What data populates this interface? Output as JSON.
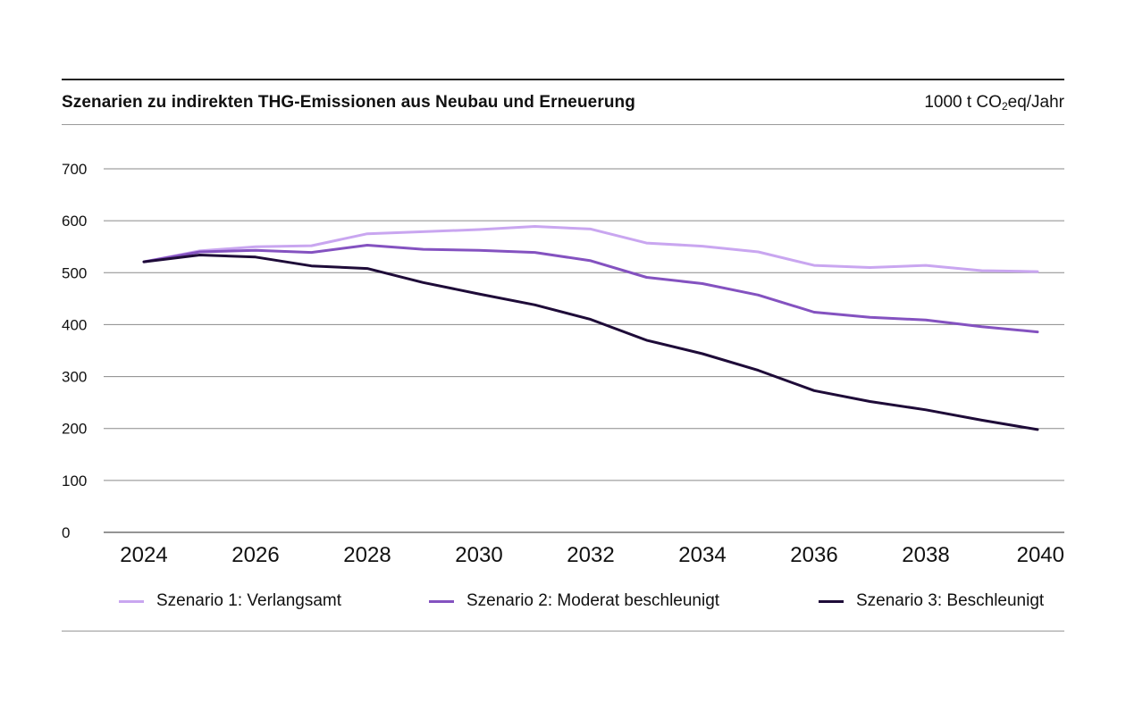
{
  "header": {
    "title": "Szenarien zu indirekten THG-Emissionen aus Neubau und Erneuerung",
    "unit_prefix": "1000 t CO",
    "unit_sub": "2",
    "unit_suffix": "eq/Jahr"
  },
  "chart_data": {
    "type": "line",
    "title": "Szenarien zu indirekten THG-Emissionen aus Neubau und Erneuerung",
    "ylabel": "1000 t CO2eq/Jahr",
    "xlabel": "",
    "x": [
      2024,
      2025,
      2026,
      2027,
      2028,
      2029,
      2030,
      2031,
      2032,
      2033,
      2034,
      2035,
      2036,
      2037,
      2038,
      2039,
      2040
    ],
    "x_ticks": [
      "2024",
      "2026",
      "2028",
      "2030",
      "2032",
      "2034",
      "2036",
      "2038",
      "2040"
    ],
    "y_ticks": [
      "0",
      "100",
      "200",
      "300",
      "400",
      "500",
      "600",
      "700"
    ],
    "ylim": [
      0,
      700
    ],
    "grid": true,
    "legend_position": "bottom",
    "series": [
      {
        "name": "Szenario 1: Verlangsamt",
        "color": "#c9a6f0",
        "values": [
          521,
          542,
          550,
          552,
          575,
          579,
          583,
          589,
          584,
          557,
          551,
          540,
          514,
          510,
          514,
          504,
          502
        ]
      },
      {
        "name": "Szenario 2: Moderat beschleunigt",
        "color": "#8452c0",
        "values": [
          521,
          540,
          543,
          539,
          553,
          545,
          543,
          539,
          523,
          491,
          479,
          457,
          424,
          414,
          409,
          396,
          386
        ]
      },
      {
        "name": "Szenario 3: Beschleunigt",
        "color": "#1e0b38",
        "values": [
          521,
          534,
          530,
          513,
          508,
          481,
          459,
          438,
          410,
          370,
          344,
          312,
          273,
          252,
          236,
          216,
          198
        ]
      }
    ]
  }
}
